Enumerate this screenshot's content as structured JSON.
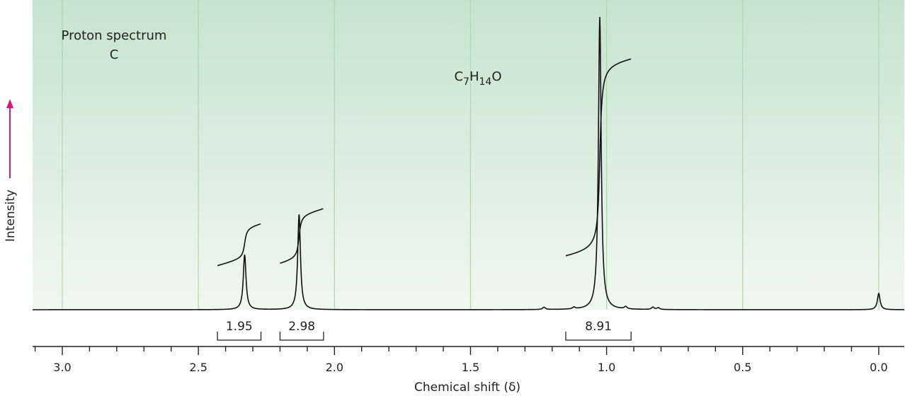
{
  "chart_data": {
    "type": "line",
    "annotations": {
      "title_line1": "Proton spectrum",
      "title_line2": "C",
      "formula": {
        "c": "C",
        "c_sub": "7",
        "h": "H",
        "h_sub": "14",
        "o": "O"
      }
    },
    "xlabel": "Chemical shift (δ)",
    "ylabel": "Intensity",
    "x_reversed": true,
    "xlim": [
      3.1,
      -0.1
    ],
    "ylim": [
      0,
      1
    ],
    "x_ticks": [
      {
        "value": 3.0,
        "label": "3.0"
      },
      {
        "value": 2.5,
        "label": "2.5"
      },
      {
        "value": 2.0,
        "label": "2.0"
      },
      {
        "value": 1.5,
        "label": "1.5"
      },
      {
        "value": 1.0,
        "label": "1.0"
      },
      {
        "value": 0.5,
        "label": "0.5"
      },
      {
        "value": 0.0,
        "label": "0.0"
      }
    ],
    "minor_tick_step": 0.1,
    "grid": true,
    "colors": {
      "background_top": "#c7e3cd",
      "background_bottom": "#f4faf5",
      "gridline": "#a9dba3",
      "spectrum": "#111111",
      "intensity_arrow": "#d6197a"
    },
    "series": [
      {
        "peaks": [
          {
            "shift": 2.33,
            "height": 0.095
          },
          {
            "shift": 2.13,
            "height": 0.165
          },
          {
            "shift": 1.025,
            "height": 0.505
          },
          {
            "shift": 0.0,
            "height": 0.028
          },
          {
            "shift": 1.23,
            "height": 0.004
          },
          {
            "shift": 1.12,
            "height": 0.003
          },
          {
            "shift": 0.93,
            "height": 0.004
          },
          {
            "shift": 0.83,
            "height": 0.004
          },
          {
            "shift": 0.81,
            "height": 0.003
          }
        ]
      }
    ],
    "integrals": [
      {
        "from": 2.43,
        "to": 2.27,
        "value": "1.95",
        "shift": 2.33,
        "start": 0.075,
        "rise": 0.055
      },
      {
        "from": 2.2,
        "to": 2.04,
        "value": "2.98",
        "shift": 2.13,
        "start": 0.078,
        "rise": 0.078
      },
      {
        "from": 1.15,
        "to": 0.91,
        "value": "8.91",
        "shift": 1.025,
        "start": 0.088,
        "rise": 0.33
      }
    ]
  }
}
